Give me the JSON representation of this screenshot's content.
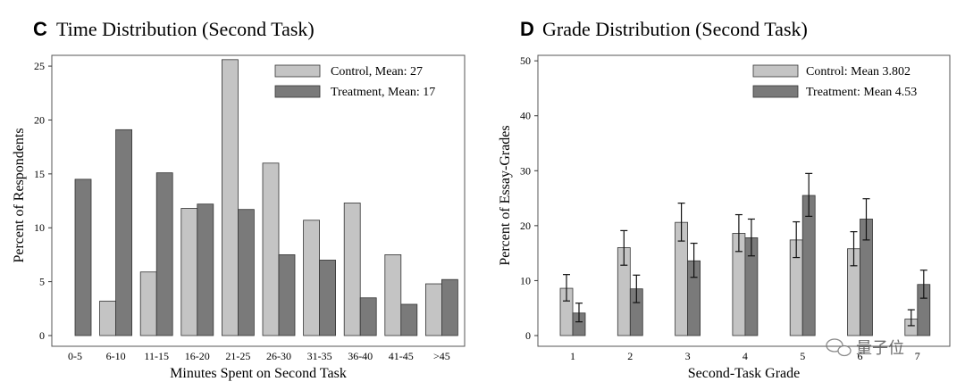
{
  "panels": [
    {
      "letter": "C",
      "title": "Time Distribution (Second Task)",
      "colors": {
        "control": "#c4c4c4",
        "treatment": "#7a7a7a"
      },
      "chart_data": {
        "type": "bar",
        "title": "Time Distribution (Second Task)",
        "xlabel": "Minutes Spent on Second Task",
        "ylabel": "Percent of Respondents",
        "ylim": [
          0,
          26
        ],
        "yticks": [
          0,
          5,
          10,
          15,
          20,
          25
        ],
        "categories": [
          "0-5",
          "6-10",
          "11-15",
          "16-20",
          "21-25",
          "26-30",
          "31-35",
          "36-40",
          "41-45",
          ">45"
        ],
        "series": [
          {
            "name": "Control, Mean: 27",
            "values": [
              0,
              3.2,
              5.9,
              11.8,
              25.6,
              16.0,
              10.7,
              12.3,
              7.5,
              4.8
            ]
          },
          {
            "name": "Treatment, Mean: 17",
            "values": [
              14.5,
              19.1,
              15.1,
              12.2,
              11.7,
              7.5,
              7.0,
              3.5,
              2.9,
              5.2
            ]
          }
        ],
        "legend": "top-right",
        "grid": false
      }
    },
    {
      "letter": "D",
      "title": "Grade Distribution (Second Task)",
      "colors": {
        "control": "#c4c4c4",
        "treatment": "#7a7a7a"
      },
      "chart_data": {
        "type": "bar",
        "title": "Grade Distribution (Second Task)",
        "xlabel": "Second-Task Grade",
        "ylabel": "Percent of Essay-Grades",
        "ylim": [
          0,
          51
        ],
        "yticks": [
          0,
          10,
          20,
          30,
          40,
          50
        ],
        "categories": [
          "1",
          "2",
          "3",
          "4",
          "5",
          "6",
          "7"
        ],
        "series": [
          {
            "name": "Control: Mean 3.802",
            "values": [
              8.6,
              16.0,
              20.6,
              18.6,
              17.4,
              15.8,
              3.0
            ],
            "err_low": [
              6.3,
              12.8,
              17.2,
              15.3,
              14.2,
              12.7,
              1.8
            ],
            "err_high": [
              11.1,
              19.1,
              24.1,
              22.0,
              20.7,
              18.9,
              4.7
            ]
          },
          {
            "name": "Treatment: Mean 4.53",
            "values": [
              4.1,
              8.5,
              13.6,
              17.8,
              25.5,
              21.2,
              9.3
            ],
            "err_low": [
              2.5,
              6.0,
              10.6,
              14.5,
              21.7,
              17.4,
              6.8
            ],
            "err_high": [
              5.9,
              11.0,
              16.8,
              21.2,
              29.5,
              24.9,
              11.9
            ]
          }
        ],
        "legend": "top-right",
        "grid": false
      }
    }
  ],
  "watermark": {
    "text": "量子位",
    "icon": "wechat-icon"
  }
}
